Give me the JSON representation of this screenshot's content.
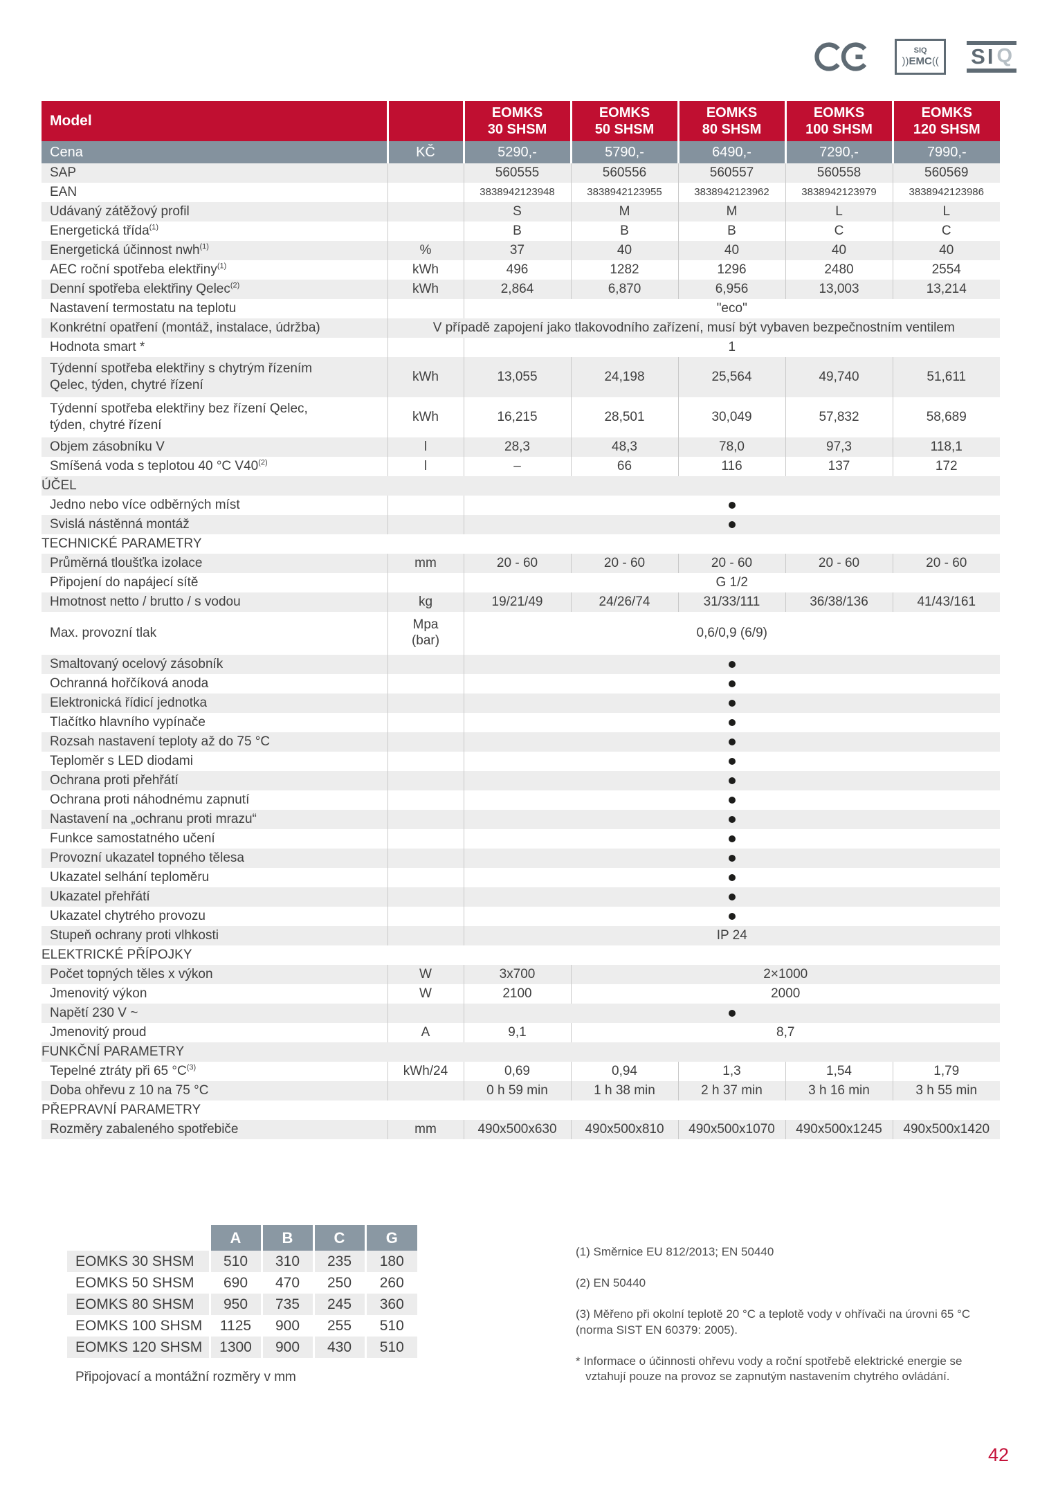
{
  "logos": {
    "siq_emc_top": "SIQ",
    "siq_emc_arc_left": "))",
    "siq_emc_main": "EMC",
    "siq_emc_arc_right": "((",
    "siq_si": "SI",
    "siq_q": "Q"
  },
  "colors": {
    "header_red": "#c00f31",
    "price_slate": "#84929e",
    "section_red": "#c41239",
    "stripe_gray": "#ededed"
  },
  "spec_table": {
    "model_header": {
      "label": "Model",
      "models": [
        {
          "line1": "EOMKS",
          "line2": "30 SHSM"
        },
        {
          "line1": "EOMKS",
          "line2": "50 SHSM"
        },
        {
          "line1": "EOMKS",
          "line2": "80 SHSM"
        },
        {
          "line1": "EOMKS",
          "line2": "100 SHSM"
        },
        {
          "line1": "EOMKS",
          "line2": "120 SHSM"
        }
      ]
    },
    "price": {
      "label": "Cena",
      "unit": "KČ",
      "values": [
        "5290,-",
        "5790,-",
        "6490,-",
        "7290,-",
        "7990,-"
      ]
    },
    "rows": [
      {
        "label": "SAP",
        "cells": [
          {
            "t": "560555"
          },
          {
            "t": "560556"
          },
          {
            "t": "560557"
          },
          {
            "t": "560558"
          },
          {
            "t": "560569"
          }
        ]
      },
      {
        "label": "EAN",
        "small": true,
        "cells": [
          {
            "t": "3838942123948"
          },
          {
            "t": "3838942123955"
          },
          {
            "t": "3838942123962"
          },
          {
            "t": "3838942123979"
          },
          {
            "t": "3838942123986"
          }
        ]
      },
      {
        "label": "Udávaný zátěžový profil",
        "cells": [
          {
            "t": "S"
          },
          {
            "t": "M"
          },
          {
            "t": "M"
          },
          {
            "t": "L"
          },
          {
            "t": "L"
          }
        ]
      },
      {
        "label": "Energetická třída",
        "sup": "(1)",
        "cells": [
          {
            "t": "B"
          },
          {
            "t": "B"
          },
          {
            "t": "B"
          },
          {
            "t": "C"
          },
          {
            "t": "C"
          }
        ]
      },
      {
        "label": "Energetická účinnost nwh",
        "sup": "(1)",
        "unit": "%",
        "cells": [
          {
            "t": "37"
          },
          {
            "t": "40"
          },
          {
            "t": "40"
          },
          {
            "t": "40"
          },
          {
            "t": "40"
          }
        ]
      },
      {
        "label": "AEC roční spotřeba elektřiny",
        "sup": "(1)",
        "unit": "kWh",
        "cells": [
          {
            "t": "496"
          },
          {
            "t": "1282"
          },
          {
            "t": "1296"
          },
          {
            "t": "2480"
          },
          {
            "t": "2554"
          }
        ]
      },
      {
        "label": "Denní spotřeba elektřiny Qelec",
        "sup": "(2)",
        "unit": "kWh",
        "cells": [
          {
            "t": "2,864"
          },
          {
            "t": "6,870"
          },
          {
            "t": "6,956"
          },
          {
            "t": "13,003"
          },
          {
            "t": "13,214"
          }
        ]
      },
      {
        "label": "Nastavení termostatu na teplotu",
        "cells": [
          {
            "t": "\"eco\"",
            "span": 5
          }
        ]
      },
      {
        "label": "Konkrétní opatření (montáž, instalace, údržba)",
        "wide": true,
        "cells": [
          {
            "t": "V případě zapojení jako tlakovodního zařízení, musí být vybaven bezpečnostním ventilem",
            "span": 6
          }
        ]
      },
      {
        "label": "Hodnota smart *",
        "cells": [
          {
            "t": "1",
            "span": 5
          }
        ]
      },
      {
        "label": "Týdenní spotřeba elektřiny s chytrým řízením",
        "label2": "Qelec, týden, chytré řízení",
        "unit": "kWh",
        "cells": [
          {
            "t": "13,055"
          },
          {
            "t": "24,198"
          },
          {
            "t": "25,564"
          },
          {
            "t": "49,740"
          },
          {
            "t": "51,611"
          }
        ]
      },
      {
        "label": "Týdenní spotřeba elektřiny bez řízení Qelec,",
        "label2": "týden, chytré řízení",
        "unit": "kWh",
        "cells": [
          {
            "t": "16,215"
          },
          {
            "t": "28,501"
          },
          {
            "t": "30,049"
          },
          {
            "t": "57,832"
          },
          {
            "t": "58,689"
          }
        ]
      },
      {
        "label": "Objem zásobníku V",
        "unit": "l",
        "cells": [
          {
            "t": "28,3"
          },
          {
            "t": "48,3"
          },
          {
            "t": "78,0"
          },
          {
            "t": "97,3"
          },
          {
            "t": "118,1"
          }
        ]
      },
      {
        "label": "Smíšená voda s teplotou 40 °C V40",
        "sup": "(2)",
        "unit": "l",
        "cells": [
          {
            "t": "–"
          },
          {
            "t": "66"
          },
          {
            "t": "116"
          },
          {
            "t": "137"
          },
          {
            "t": "172"
          }
        ]
      },
      {
        "section": "ÚČEL"
      },
      {
        "label": "Jedno nebo více odběrných míst",
        "cells": [
          {
            "bullet": true,
            "span": 5
          }
        ]
      },
      {
        "label": "Svislá nástěnná montáž",
        "cells": [
          {
            "bullet": true,
            "span": 5
          }
        ]
      },
      {
        "section": "TECHNICKÉ PARAMETRY"
      },
      {
        "label": "Průměrná tloušťka izolace",
        "unit": "mm",
        "cells": [
          {
            "t": "20 - 60"
          },
          {
            "t": "20 - 60"
          },
          {
            "t": "20 - 60"
          },
          {
            "t": "20 - 60"
          },
          {
            "t": "20 - 60"
          }
        ]
      },
      {
        "label": "Připojení do napájecí sítě",
        "cells": [
          {
            "t": "G 1/2",
            "span": 5
          }
        ]
      },
      {
        "label": "Hmotnost netto / brutto / s vodou",
        "unit": "kg",
        "cells": [
          {
            "t": "19/21/49"
          },
          {
            "t": "24/26/74"
          },
          {
            "t": "31/33/111"
          },
          {
            "t": "36/38/136"
          },
          {
            "t": "41/43/161"
          }
        ]
      },
      {
        "label": "Max. provozní tlak",
        "unit": "Mpa",
        "unit2": "(bar)",
        "cells": [
          {
            "t": "0,6/0,9  (6/9)",
            "span": 5
          }
        ]
      },
      {
        "label": "Smaltovaný ocelový zásobník",
        "cells": [
          {
            "bullet": true,
            "span": 5
          }
        ]
      },
      {
        "label": "Ochranná hořčíková anoda",
        "cells": [
          {
            "bullet": true,
            "span": 5
          }
        ]
      },
      {
        "label": "Elektronická řídicí jednotka",
        "cells": [
          {
            "bullet": true,
            "span": 5
          }
        ]
      },
      {
        "label": "Tlačítko hlavního vypínače",
        "cells": [
          {
            "bullet": true,
            "span": 5
          }
        ]
      },
      {
        "label": "Rozsah nastavení teploty až do 75 °C",
        "cells": [
          {
            "bullet": true,
            "span": 5
          }
        ]
      },
      {
        "label": "Teploměr s LED diodami",
        "cells": [
          {
            "bullet": true,
            "span": 5
          }
        ]
      },
      {
        "label": "Ochrana proti přehřátí",
        "cells": [
          {
            "bullet": true,
            "span": 5
          }
        ]
      },
      {
        "label": "Ochrana proti náhodnému zapnutí",
        "cells": [
          {
            "bullet": true,
            "span": 5
          }
        ]
      },
      {
        "label": "Nastavení na „ochranu proti mrazu“",
        "cells": [
          {
            "bullet": true,
            "span": 5
          }
        ]
      },
      {
        "label": "Funkce samostatného učení",
        "cells": [
          {
            "bullet": true,
            "span": 5
          }
        ]
      },
      {
        "label": "Provozní ukazatel topného tělesa",
        "cells": [
          {
            "bullet": true,
            "span": 5
          }
        ]
      },
      {
        "label": "Ukazatel selhání teploměru",
        "cells": [
          {
            "bullet": true,
            "span": 5
          }
        ]
      },
      {
        "label": "Ukazatel přehřátí",
        "cells": [
          {
            "bullet": true,
            "span": 5
          }
        ]
      },
      {
        "label": "Ukazatel chytrého provozu",
        "cells": [
          {
            "bullet": true,
            "span": 5
          }
        ]
      },
      {
        "label": "Stupeň ochrany proti vlhkosti",
        "cells": [
          {
            "t": "IP 24",
            "span": 5
          }
        ]
      },
      {
        "section": "ELEKTRICKÉ PŘÍPOJKY"
      },
      {
        "label": "Počet topných těles x výkon",
        "unit": "W",
        "cells": [
          {
            "t": "3x700"
          },
          {
            "t": "2×1000",
            "span": 4
          }
        ]
      },
      {
        "label": "Jmenovitý výkon",
        "unit": "W",
        "cells": [
          {
            "t": "2100"
          },
          {
            "t": "2000",
            "span": 4
          }
        ]
      },
      {
        "label": "Napětí 230 V ~",
        "cells": [
          {
            "bullet": true,
            "span": 5
          }
        ]
      },
      {
        "label": "Jmenovitý proud",
        "unit": "A",
        "cells": [
          {
            "t": "9,1"
          },
          {
            "t": "8,7",
            "span": 4
          }
        ]
      },
      {
        "section": "FUNKČNÍ PARAMETRY"
      },
      {
        "label": "Tepelné ztráty při 65 °C",
        "sup": "(3)",
        "unit": "kWh/24",
        "cells": [
          {
            "t": "0,69"
          },
          {
            "t": "0,94"
          },
          {
            "t": "1,3"
          },
          {
            "t": "1,54"
          },
          {
            "t": "1,79"
          }
        ]
      },
      {
        "label": "Doba ohřevu z 10 na 75 °C",
        "cells": [
          {
            "t": "0 h 59 min"
          },
          {
            "t": "1 h 38 min"
          },
          {
            "t": "2 h 37 min"
          },
          {
            "t": "3 h 16 min"
          },
          {
            "t": "3 h 55 min"
          }
        ]
      },
      {
        "section": "PŘEPRAVNÍ PARAMETRY"
      },
      {
        "label": "Rozměry zabaleného spotřebiče",
        "unit": "mm",
        "cells": [
          {
            "t": "490x500x630"
          },
          {
            "t": "490x500x810"
          },
          {
            "t": "490x500x1070"
          },
          {
            "t": "490x500x1245"
          },
          {
            "t": "490x500x1420"
          }
        ]
      }
    ]
  },
  "dims_table": {
    "columns": [
      "A",
      "B",
      "C",
      "G"
    ],
    "rows": [
      {
        "model": "EOMKS 30 SHSM",
        "values": [
          "510",
          "310",
          "235",
          "180"
        ]
      },
      {
        "model": "EOMKS 50 SHSM",
        "values": [
          "690",
          "470",
          "250",
          "260"
        ]
      },
      {
        "model": "EOMKS 80 SHSM",
        "values": [
          "950",
          "735",
          "245",
          "360"
        ]
      },
      {
        "model": "EOMKS 100 SHSM",
        "values": [
          "1125",
          "900",
          "255",
          "510"
        ]
      },
      {
        "model": "EOMKS 120 SHSM",
        "values": [
          "1300",
          "900",
          "430",
          "510"
        ]
      }
    ],
    "caption": "Připojovací a montážní rozměry v mm"
  },
  "footnotes": [
    "(1) Směrnice EU 812/2013; EN 50440",
    "(2) EN 50440",
    "(3) Měřeno při okolní teplotě 20 °C a teplotě vody v ohřívači na úrovni 65 °C\n(norma SIST EN 60379: 2005).",
    "* Informace o účinnosti ohřevu vody a roční spotřebě elektrické energie se\n   vztahují pouze na provoz se zapnutým nastavením chytrého ovládání."
  ],
  "page_number": "42"
}
